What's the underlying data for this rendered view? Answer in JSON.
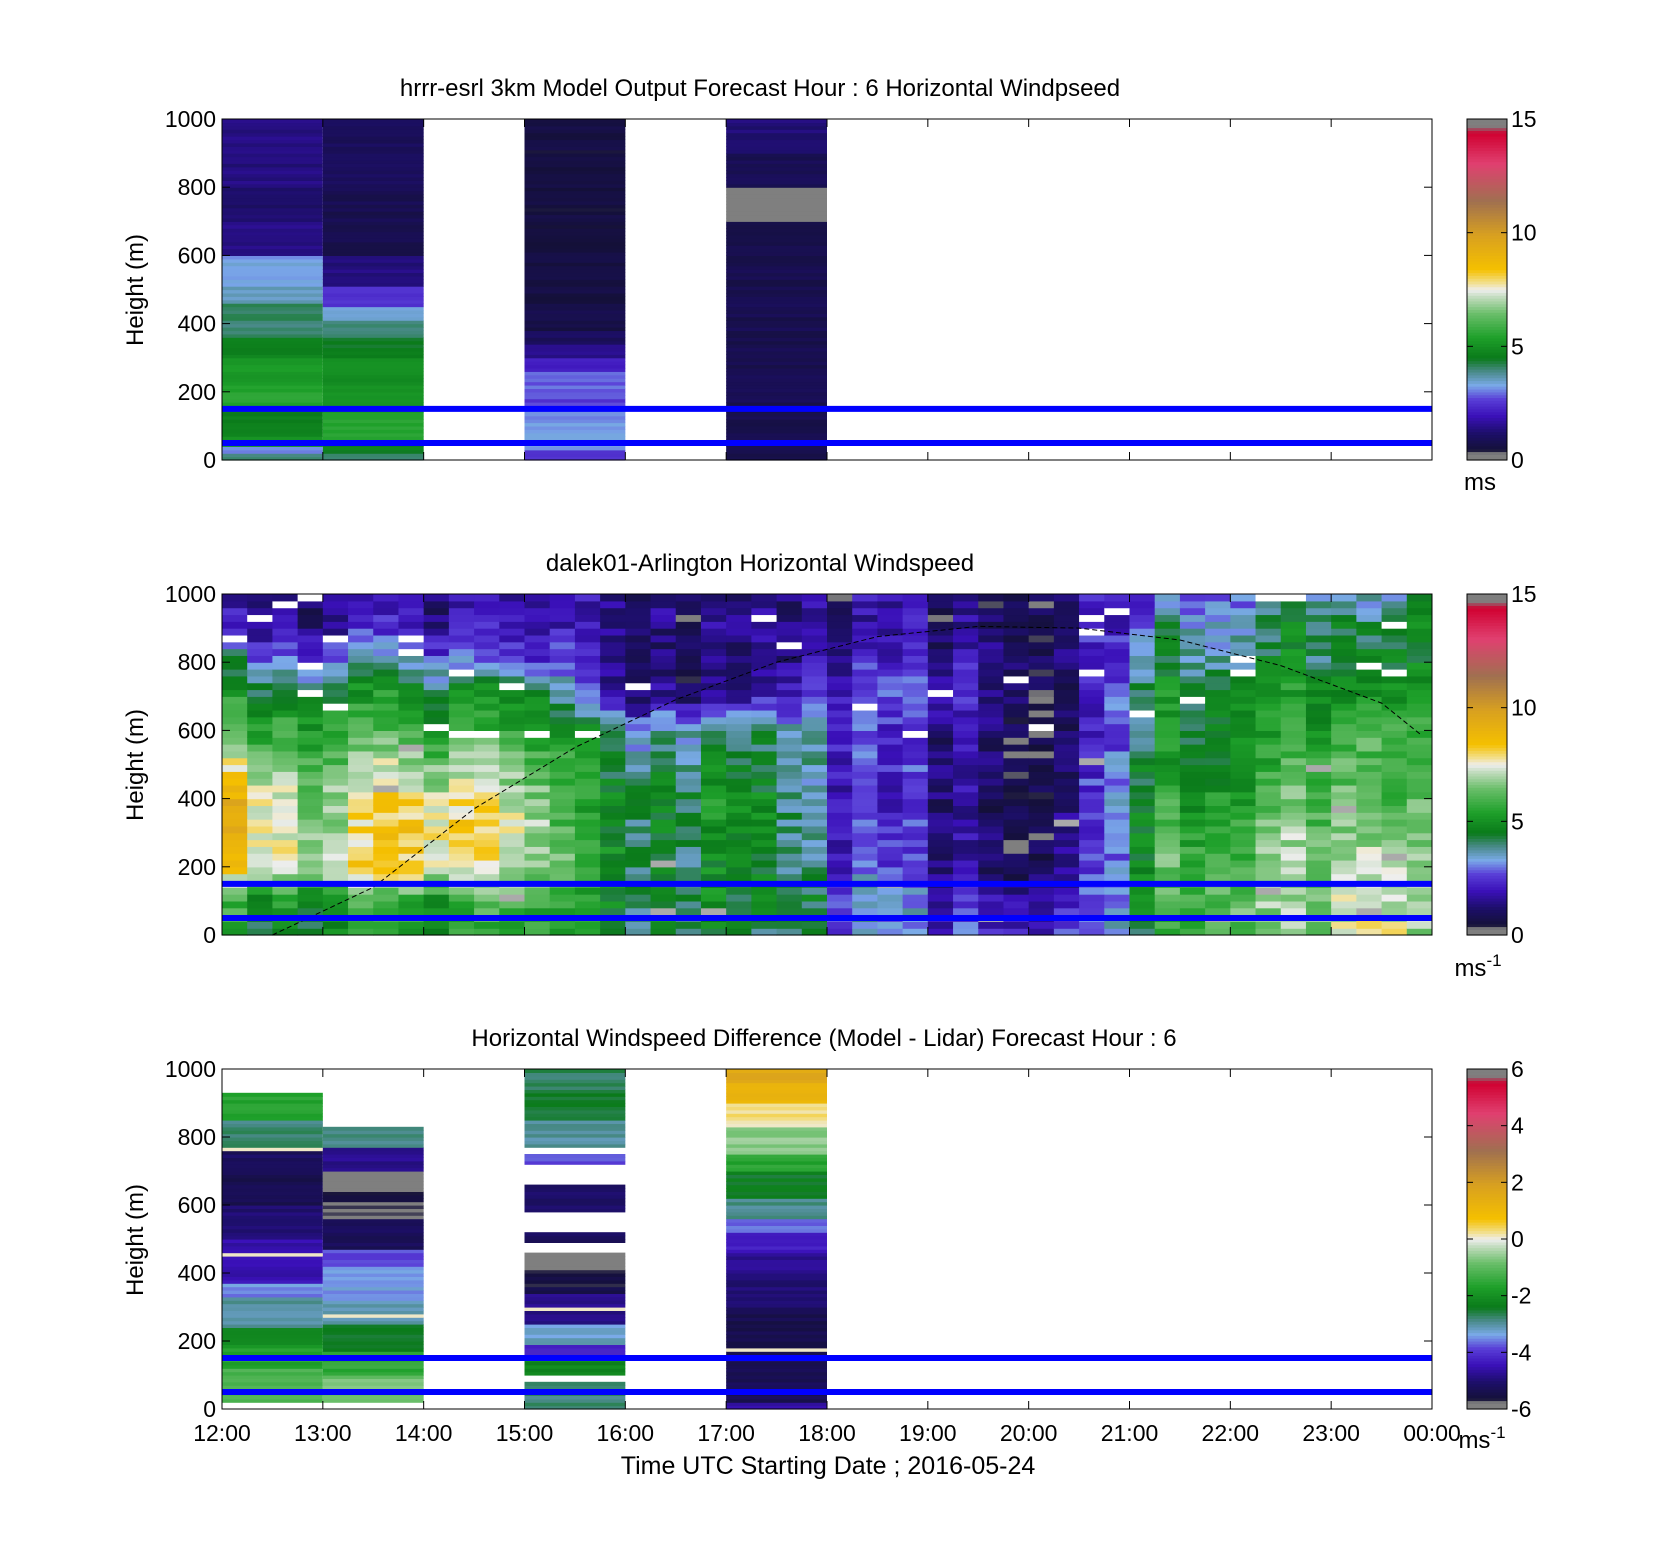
{
  "figure": {
    "xlabel": "Time UTC  Starting Date ; 2016-05-24",
    "x_ticks": [
      "12:00",
      "13:00",
      "14:00",
      "15:00",
      "16:00",
      "17:00",
      "18:00",
      "19:00",
      "20:00",
      "21:00",
      "22:00",
      "23:00",
      "00:00"
    ],
    "reference_lines_m": [
      50,
      150
    ],
    "reference_line_color": "#0000ff"
  },
  "chart_data": [
    {
      "type": "heatmap",
      "title": "hrrr-esrl 3km Model Output   Forecast Hour : 6 Horizontal Windpseed",
      "ylabel": "Height (m)",
      "xlim_hours": [
        12,
        24
      ],
      "ylim": [
        0,
        1000
      ],
      "y_ticks": [
        "0",
        "200",
        "400",
        "600",
        "800",
        "1000"
      ],
      "colorbar": {
        "min": 0,
        "max": 15,
        "ticks": [
          "0",
          "5",
          "10",
          "15"
        ],
        "unit": "ms"
      },
      "columns": [
        {
          "start": 12,
          "end": 13,
          "top": 1000,
          "profile": [
            [
              0,
              20,
              4
            ],
            [
              20,
              40,
              3
            ],
            [
              40,
              70,
              5.2
            ],
            [
              70,
              150,
              4.6
            ],
            [
              150,
              220,
              5.5
            ],
            [
              220,
              300,
              5.2
            ],
            [
              300,
              360,
              4.7
            ],
            [
              360,
              410,
              4
            ],
            [
              410,
              460,
              4.1
            ],
            [
              460,
              510,
              3.6
            ],
            [
              510,
              600,
              3.3
            ],
            [
              600,
              700,
              1.5
            ],
            [
              700,
              800,
              1.2
            ],
            [
              800,
              1000,
              1.4
            ]
          ]
        },
        {
          "start": 13,
          "end": 14,
          "top": 1000,
          "profile": [
            [
              0,
              20,
              4
            ],
            [
              20,
              60,
              4.6
            ],
            [
              60,
              150,
              5.5
            ],
            [
              150,
              300,
              5
            ],
            [
              300,
              360,
              4.5
            ],
            [
              360,
              410,
              4
            ],
            [
              410,
              450,
              3.5
            ],
            [
              450,
              510,
              2.4
            ],
            [
              510,
              600,
              1.4
            ],
            [
              600,
              800,
              0.8
            ],
            [
              800,
              1000,
              1
            ]
          ]
        },
        {
          "start": 15,
          "end": 16,
          "top": 1000,
          "profile": [
            [
              0,
              30,
              2.5
            ],
            [
              30,
              150,
              3.2
            ],
            [
              150,
              180,
              2.6
            ],
            [
              180,
              220,
              2.9
            ],
            [
              220,
              260,
              2.8
            ],
            [
              260,
              300,
              2.1
            ],
            [
              300,
              340,
              1.5
            ],
            [
              340,
              380,
              1
            ],
            [
              380,
              450,
              0.7
            ],
            [
              450,
              1000,
              0.6
            ]
          ]
        },
        {
          "start": 17,
          "end": 18,
          "top": 1000,
          "profile": [
            [
              0,
              20,
              0.6
            ],
            [
              20,
              700,
              0.8
            ],
            [
              700,
              800,
              0.15
            ],
            [
              800,
              900,
              0.9
            ],
            [
              900,
              1000,
              1.3
            ]
          ]
        }
      ]
    },
    {
      "type": "heatmap",
      "title": "dalek01-Arlington  Horizontal Windspeed",
      "ylabel": "Height (m)",
      "xlim_hours": [
        12,
        24
      ],
      "ylim": [
        0,
        1000
      ],
      "y_ticks": [
        "0",
        "200",
        "400",
        "600",
        "800",
        "1000"
      ],
      "colorbar": {
        "min": 0,
        "max": 15,
        "ticks": [
          "0",
          "5",
          "10",
          "15"
        ],
        "unit": "ms",
        "unit_sup": "-1"
      },
      "time_keys": [
        12,
        13,
        14,
        15,
        15.5,
        16,
        17,
        17.5,
        18,
        18.5,
        19,
        19.5,
        20,
        20.5,
        20.8,
        21,
        21.5,
        22,
        22.5,
        23,
        23.5,
        23.9
      ],
      "profile_keys_m": [
        0,
        100,
        200,
        300,
        400,
        500,
        600,
        700,
        800,
        900,
        1000
      ],
      "speed_grid": [
        [
          5.0,
          5.5,
          8.0,
          9.0,
          9.0,
          7.5,
          6.0,
          5.0,
          4.0,
          2.0,
          1.5
        ],
        [
          5.0,
          5.5,
          7.5,
          7.0,
          7.0,
          6.5,
          6.0,
          5.0,
          3.5,
          2.0,
          1.5
        ],
        [
          5.0,
          5.5,
          8.0,
          8.5,
          8.0,
          7.0,
          5.5,
          5.0,
          3.5,
          2.0,
          1.5
        ],
        [
          5.0,
          5.5,
          6.5,
          7.0,
          6.5,
          6.0,
          5.0,
          4.5,
          2.0,
          1.5,
          1.2
        ],
        [
          4.5,
          5.0,
          5.5,
          5.0,
          5.0,
          5.0,
          4.5,
          3.0,
          2.0,
          1.5,
          1.2
        ],
        [
          4.5,
          4.5,
          4.5,
          4.5,
          4.5,
          4.0,
          3.5,
          1.5,
          1.0,
          1.2,
          1.5
        ],
        [
          4.0,
          4.5,
          4.5,
          4.5,
          5.0,
          4.5,
          4.0,
          1.5,
          1.0,
          1.2,
          1.2
        ],
        [
          4.0,
          4.5,
          4.5,
          4.5,
          4.5,
          4.0,
          4.0,
          2.0,
          1.5,
          1.5,
          1.2
        ],
        [
          3.5,
          4.0,
          3.0,
          3.0,
          3.0,
          3.0,
          3.0,
          2.5,
          2.0,
          1.5,
          1.5
        ],
        [
          3.0,
          3.0,
          2.5,
          2.2,
          2.0,
          2.0,
          2.0,
          2.5,
          2.0,
          1.5,
          1.5
        ],
        [
          2.5,
          2.5,
          2.0,
          2.0,
          2.0,
          2.0,
          2.0,
          2.5,
          2.0,
          1.5,
          1.5
        ],
        [
          2.5,
          2.5,
          1.5,
          1.5,
          1.5,
          1.5,
          1.5,
          2.0,
          2.0,
          1.5,
          1.0
        ],
        [
          2.5,
          2.0,
          1.2,
          1.0,
          1.0,
          1.0,
          1.0,
          1.2,
          1.2,
          1.0,
          1.2
        ],
        [
          2.5,
          2.0,
          1.5,
          1.5,
          1.5,
          1.2,
          1.0,
          1.0,
          1.5,
          1.5,
          1.5
        ],
        [
          3.0,
          3.0,
          2.5,
          2.5,
          3.0,
          2.5,
          2.0,
          2.5,
          2.5,
          2.0,
          2.0
        ],
        [
          4.5,
          5.0,
          5.0,
          5.0,
          5.0,
          5.0,
          4.5,
          4.5,
          4.0,
          3.5,
          2.5
        ],
        [
          5.0,
          5.5,
          6.0,
          5.5,
          5.0,
          4.5,
          4.5,
          4.5,
          4.0,
          3.5,
          2.5
        ],
        [
          6.5,
          6.5,
          6.0,
          6.0,
          5.5,
          5.0,
          5.0,
          5.0,
          4.0,
          3.5,
          3.0
        ],
        [
          6.5,
          6.5,
          6.5,
          6.5,
          6.0,
          5.5,
          5.0,
          5.0,
          4.5,
          4.0,
          3.5
        ],
        [
          7.0,
          7.0,
          6.5,
          6.5,
          6.5,
          6.0,
          5.5,
          5.0,
          4.5,
          4.5,
          4.0
        ],
        [
          8.5,
          8.0,
          8.0,
          7.0,
          6.5,
          6.5,
          6.5,
          5.5,
          5.0,
          4.5,
          3.5
        ],
        [
          6.0,
          6.0,
          6.0,
          6.0,
          5.5,
          5.0,
          5.0,
          4.5,
          4.0,
          4.0,
          4.0
        ]
      ],
      "dashed_curve": [
        [
          12.5,
          0
        ],
        [
          13.5,
          140
        ],
        [
          14.5,
          370
        ],
        [
          15.5,
          550
        ],
        [
          16.5,
          690
        ],
        [
          17.5,
          800
        ],
        [
          18.5,
          875
        ],
        [
          19.5,
          905
        ],
        [
          20.5,
          900
        ],
        [
          21.5,
          865
        ],
        [
          22.5,
          790
        ],
        [
          23.5,
          680
        ],
        [
          23.9,
          585
        ]
      ]
    },
    {
      "type": "heatmap",
      "title": "Horizontal Windspeed Difference (Model - Lidar) Forecast Hour : 6",
      "ylabel": "Height (m)",
      "xlim_hours": [
        12,
        24
      ],
      "ylim": [
        0,
        1000
      ],
      "y_ticks": [
        "0",
        "200",
        "400",
        "600",
        "800",
        "1000"
      ],
      "colorbar": {
        "min": -6,
        "max": 6,
        "ticks": [
          "-6",
          "-4",
          "-2",
          "0",
          "2",
          "4",
          "6"
        ],
        "unit": "ms",
        "unit_sup": "-1"
      },
      "columns": [
        {
          "start": 12,
          "end": 13,
          "top": 930,
          "profile": [
            [
              20,
              120,
              -1.2
            ],
            [
              120,
              180,
              -1.6
            ],
            [
              180,
              240,
              -2
            ],
            [
              240,
              330,
              -3
            ],
            [
              330,
              370,
              -3.5
            ],
            [
              370,
              500,
              -4.5
            ],
            [
              500,
              600,
              -5
            ],
            [
              600,
              700,
              -5.4
            ],
            [
              700,
              770,
              -5.2
            ],
            [
              770,
              850,
              -2.8
            ],
            [
              850,
              930,
              -1.6
            ]
          ]
        },
        {
          "start": 13,
          "end": 14,
          "top": 830,
          "profile": [
            [
              20,
              100,
              -0.8
            ],
            [
              100,
              170,
              -1.5
            ],
            [
              170,
              250,
              -2.4
            ],
            [
              250,
              320,
              -3
            ],
            [
              320,
              420,
              -3.4
            ],
            [
              420,
              470,
              -3.8
            ],
            [
              470,
              560,
              -5.2
            ],
            [
              560,
              700,
              -5.7
            ],
            [
              700,
              770,
              -4.8
            ],
            [
              770,
              830,
              -2.8
            ]
          ]
        },
        {
          "start": 15,
          "end": 16,
          "top": 1000,
          "segments": [
            [
              0,
              80
            ],
            [
              100,
              150
            ],
            [
              150,
              460
            ],
            [
              490,
              520
            ],
            [
              580,
              660
            ],
            [
              720,
              750
            ],
            [
              770,
              1000
            ]
          ],
          "profile": [
            [
              0,
              80,
              -2.8
            ],
            [
              100,
              150,
              -2.2
            ],
            [
              150,
              190,
              -4.2
            ],
            [
              190,
              250,
              -3.2
            ],
            [
              250,
              340,
              -4.8
            ],
            [
              340,
              400,
              -5.5
            ],
            [
              400,
              460,
              -5.8
            ],
            [
              490,
              520,
              -5.2
            ],
            [
              580,
              660,
              -5.1
            ],
            [
              720,
              750,
              -3.8
            ],
            [
              770,
              850,
              -3
            ],
            [
              850,
              930,
              -2.5
            ],
            [
              930,
              1000,
              -2.7
            ]
          ]
        },
        {
          "start": 17,
          "end": 18,
          "top": 1000,
          "profile": [
            [
              0,
              20,
              -4.5
            ],
            [
              20,
              150,
              -5.3
            ],
            [
              150,
              300,
              -5.4
            ],
            [
              300,
              400,
              -5
            ],
            [
              400,
              460,
              -4.8
            ],
            [
              460,
              520,
              -4.3
            ],
            [
              520,
              560,
              -3.6
            ],
            [
              560,
              620,
              -2.9
            ],
            [
              620,
              700,
              -2.4
            ],
            [
              700,
              750,
              -1.6
            ],
            [
              750,
              840,
              -0.6
            ],
            [
              840,
              900,
              0.3
            ],
            [
              900,
              960,
              1.2
            ],
            [
              960,
              1000,
              1.6
            ]
          ]
        }
      ]
    }
  ]
}
